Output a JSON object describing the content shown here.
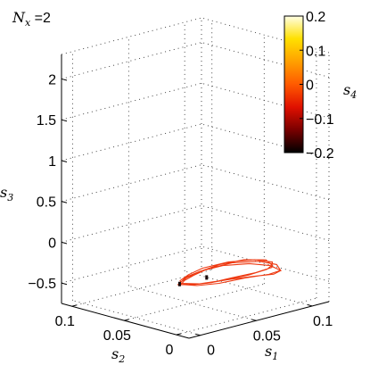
{
  "chart_data": {
    "type": "line3d",
    "title": "N_x =2",
    "title_parts": {
      "main": "N",
      "sub": "x",
      "rest": " =2"
    },
    "zlabel": {
      "main": "s",
      "sub": "3"
    },
    "ylabel": {
      "main": "s",
      "sub": "2"
    },
    "xlabel": {
      "main": "s",
      "sub": "1"
    },
    "colorbar_label": {
      "main": "s",
      "sub": "4"
    },
    "z_ticks": [
      "2",
      "1.5",
      "1",
      "0.5",
      "0",
      "−0.5"
    ],
    "z_tick_values": [
      2,
      1.5,
      1,
      0.5,
      0,
      -0.5
    ],
    "zlim": [
      -0.75,
      2.3
    ],
    "s1_ticks": [
      "0",
      "0.05",
      "0.1"
    ],
    "s1_tick_values": [
      0,
      0.05,
      0.1
    ],
    "s2_ticks": [
      "0.1",
      "0.05",
      "0"
    ],
    "s2_tick_values": [
      0.1,
      0.05,
      0
    ],
    "colorbar_ticks": [
      "0.2",
      "0.1",
      "0",
      "−0.1",
      "−0.2"
    ],
    "colorbar_tick_values": [
      0.2,
      0.1,
      0,
      -0.1,
      -0.2
    ],
    "colorbar_range": [
      -0.2,
      0.2
    ],
    "colormap": [
      "#000000",
      "#7a0000",
      "#e01000",
      "#ff5a00",
      "#ffa000",
      "#ffe000",
      "#ffffe6"
    ],
    "series_color": "#ee3a12",
    "marker_color": "#1a0a0a",
    "grid": true,
    "colorbar_position": "top-right",
    "trajectory": [
      [
        0.002,
        0.012,
        -0.22
      ],
      [
        0.01,
        0.006,
        -0.23
      ],
      [
        0.025,
        0.004,
        -0.25
      ],
      [
        0.045,
        0.006,
        -0.27
      ],
      [
        0.07,
        0.01,
        -0.31
      ],
      [
        0.09,
        0.016,
        -0.34
      ],
      [
        0.098,
        0.024,
        -0.33
      ],
      [
        0.09,
        0.032,
        -0.3
      ],
      [
        0.07,
        0.036,
        -0.27
      ],
      [
        0.045,
        0.034,
        -0.25
      ],
      [
        0.025,
        0.026,
        -0.23
      ],
      [
        0.01,
        0.018,
        -0.22
      ],
      [
        0.004,
        0.01,
        -0.22
      ],
      [
        0.012,
        0.004,
        -0.24
      ],
      [
        0.03,
        0.002,
        -0.27
      ],
      [
        0.055,
        0.004,
        -0.3
      ],
      [
        0.08,
        0.008,
        -0.36
      ],
      [
        0.096,
        0.014,
        -0.39
      ],
      [
        0.1,
        0.022,
        -0.36
      ],
      [
        0.092,
        0.03,
        -0.32
      ],
      [
        0.072,
        0.034,
        -0.28
      ],
      [
        0.048,
        0.032,
        -0.26
      ],
      [
        0.028,
        0.024,
        -0.24
      ],
      [
        0.012,
        0.016,
        -0.22
      ],
      [
        0.006,
        0.012,
        -0.22
      ],
      [
        0.016,
        0.006,
        -0.24
      ],
      [
        0.036,
        0.004,
        -0.26
      ],
      [
        0.06,
        0.006,
        -0.29
      ],
      [
        0.082,
        0.012,
        -0.32
      ],
      [
        0.094,
        0.02,
        -0.34
      ],
      [
        0.096,
        0.028,
        -0.31
      ],
      [
        0.082,
        0.034,
        -0.28
      ],
      [
        0.06,
        0.034,
        -0.26
      ],
      [
        0.038,
        0.028,
        -0.24
      ],
      [
        0.018,
        0.02,
        -0.22
      ],
      [
        0.006,
        0.014,
        -0.22
      ],
      [
        0.008,
        0.008,
        -0.23
      ],
      [
        0.022,
        0.005,
        -0.25
      ],
      [
        0.042,
        0.004,
        -0.27
      ],
      [
        0.066,
        0.007,
        -0.33
      ],
      [
        0.088,
        0.012,
        -0.4
      ],
      [
        0.1,
        0.018,
        -0.42
      ],
      [
        0.098,
        0.026,
        -0.38
      ],
      [
        0.085,
        0.032,
        -0.33
      ],
      [
        0.064,
        0.035,
        -0.29
      ],
      [
        0.04,
        0.031,
        -0.26
      ],
      [
        0.02,
        0.023,
        -0.23
      ],
      [
        0.008,
        0.015,
        -0.22
      ],
      [
        0.003,
        0.012,
        -0.22
      ]
    ],
    "marker_points": [
      [
        0.004,
        0.012,
        -0.22
      ],
      [
        0.03,
        0.014,
        -0.24
      ]
    ]
  }
}
